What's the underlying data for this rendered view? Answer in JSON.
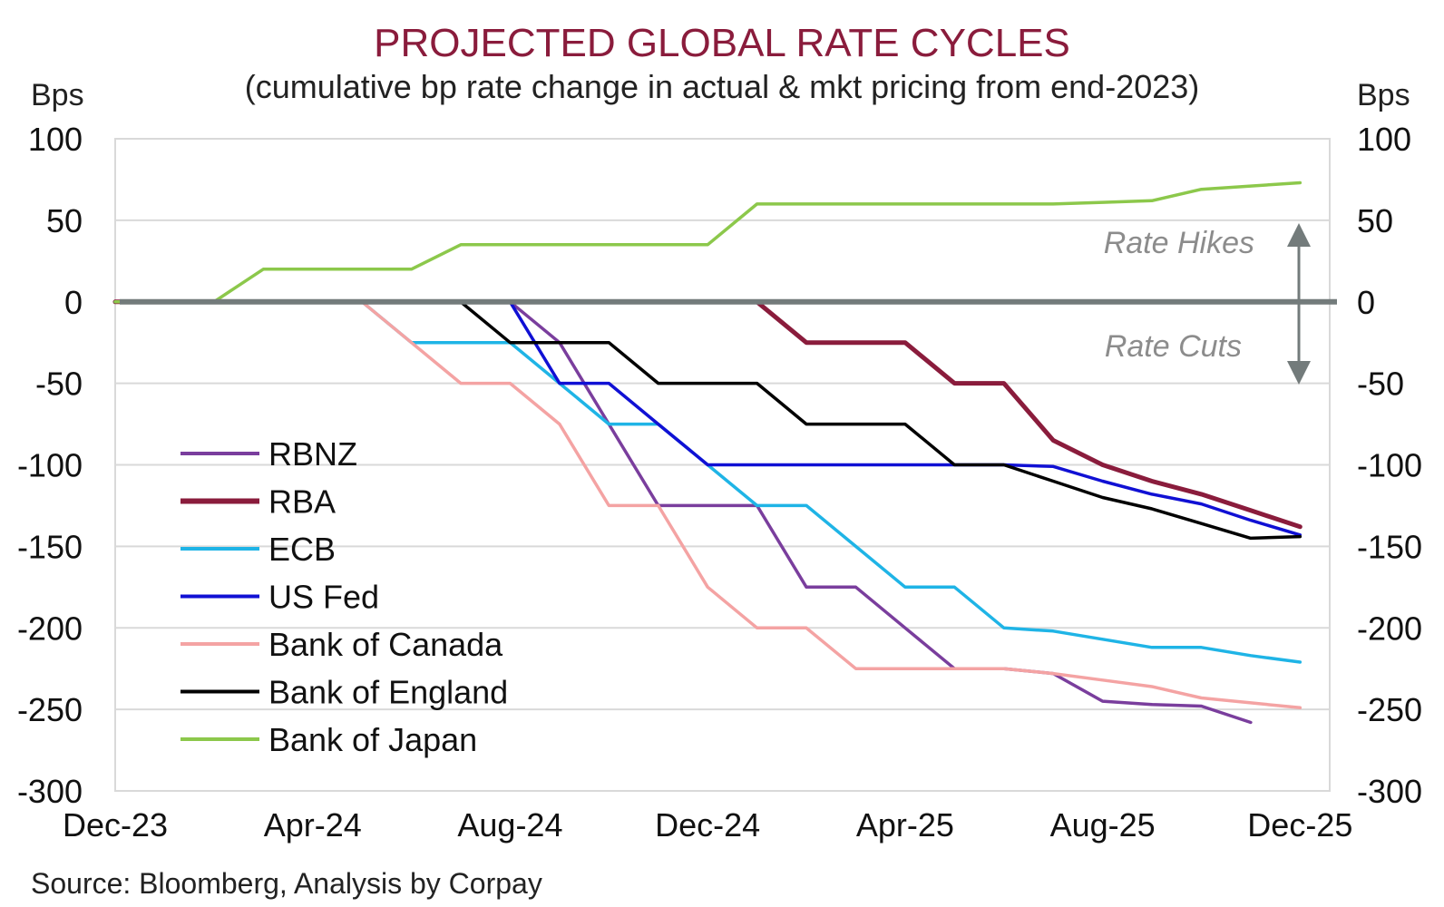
{
  "chart_data": {
    "type": "line",
    "title": "PROJECTED GLOBAL RATE CYCLES",
    "subtitle": "(cumulative bp rate change in actual & mkt pricing from end-2023)",
    "ylabel_left": "Bps",
    "ylabel_right": "Bps",
    "ylim": [
      -300,
      100
    ],
    "yticks": [
      100,
      50,
      0,
      -50,
      -100,
      -150,
      -200,
      -250,
      -300
    ],
    "x_tick_labels": [
      "Dec-23",
      "Apr-24",
      "Aug-24",
      "Dec-24",
      "Apr-25",
      "Aug-25",
      "Dec-25"
    ],
    "x_tick_positions": [
      0,
      4,
      8,
      12,
      16,
      20,
      24
    ],
    "xlim": [
      0,
      24.6
    ],
    "legend_position": "lower-left",
    "grid": true,
    "zero_line_color": "#737b7b",
    "series": [
      {
        "name": "RBNZ",
        "color": "#7a3e9d",
        "x": [
          0,
          8,
          9,
          10,
          11,
          12,
          13,
          14,
          15,
          16,
          17,
          18,
          19,
          20,
          21,
          22,
          23
        ],
        "y": [
          0,
          0,
          -25,
          -75,
          -125,
          -125,
          -125,
          -175,
          -175,
          -200,
          -225,
          -225,
          -228,
          -245,
          -247,
          -248,
          -258
        ]
      },
      {
        "name": "RBA",
        "color": "#8a1c3c",
        "x": [
          0,
          13,
          14,
          15,
          16,
          17,
          18,
          19,
          20,
          21,
          22,
          23,
          24
        ],
        "y": [
          0,
          0,
          -25,
          -25,
          -25,
          -50,
          -50,
          -85,
          -100,
          -110,
          -118,
          -128,
          -138
        ]
      },
      {
        "name": "ECB",
        "color": "#1fb4e6",
        "x": [
          0,
          5,
          6,
          7,
          8,
          9,
          10,
          11,
          12,
          13,
          14,
          15,
          16,
          17,
          18,
          19,
          20,
          21,
          22,
          23,
          24
        ],
        "y": [
          0,
          0,
          -25,
          -25,
          -25,
          -50,
          -75,
          -75,
          -100,
          -125,
          -125,
          -150,
          -175,
          -175,
          -200,
          -202,
          -207,
          -212,
          -212,
          -217,
          -221
        ]
      },
      {
        "name": "US Fed",
        "color": "#1010d4",
        "x": [
          0,
          8,
          9,
          10,
          11,
          12,
          13,
          14,
          15,
          16,
          17,
          18,
          19,
          20,
          21,
          22,
          23,
          24
        ],
        "y": [
          0,
          0,
          -50,
          -50,
          -75,
          -100,
          -100,
          -100,
          -100,
          -100,
          -100,
          -100,
          -101,
          -110,
          -118,
          -124,
          -134,
          -143
        ]
      },
      {
        "name": "Bank of Canada",
        "color": "#f4a3a3",
        "x": [
          0,
          5,
          6,
          7,
          8,
          9,
          10,
          11,
          12,
          13,
          14,
          15,
          16,
          17,
          18,
          19,
          20,
          21,
          22,
          23,
          24
        ],
        "y": [
          0,
          0,
          -25,
          -50,
          -50,
          -75,
          -125,
          -125,
          -175,
          -200,
          -200,
          -225,
          -225,
          -225,
          -225,
          -228,
          -232,
          -236,
          -243,
          -246,
          -249
        ]
      },
      {
        "name": "Bank of England",
        "color": "#000000",
        "x": [
          0,
          7,
          8,
          9,
          10,
          11,
          12,
          13,
          14,
          15,
          16,
          17,
          18,
          19,
          20,
          21,
          22,
          23,
          24
        ],
        "y": [
          0,
          0,
          -25,
          -25,
          -25,
          -50,
          -50,
          -50,
          -75,
          -75,
          -75,
          -100,
          -100,
          -110,
          -120,
          -127,
          -136,
          -145,
          -144
        ]
      },
      {
        "name": "Bank of Japan",
        "color": "#8cc84b",
        "x": [
          0,
          2,
          3,
          4,
          5,
          6,
          7,
          8,
          9,
          10,
          11,
          12,
          13,
          14,
          15,
          16,
          17,
          18,
          19,
          20,
          21,
          22,
          23,
          24
        ],
        "y": [
          0,
          0,
          20,
          20,
          20,
          20,
          35,
          35,
          35,
          35,
          35,
          35,
          60,
          60,
          60,
          60,
          60,
          60,
          60,
          61,
          62,
          69,
          71,
          73
        ]
      }
    ],
    "annotations": {
      "hikes": "Rate Hikes",
      "cuts": "Rate Cuts"
    },
    "source": "Source: Bloomberg, Analysis by Corpay"
  },
  "colors": {
    "title": "#8a1c3c",
    "grid": "#d9d9d9",
    "annotation": "#8c8c8c",
    "arrow": "#737b7b"
  }
}
